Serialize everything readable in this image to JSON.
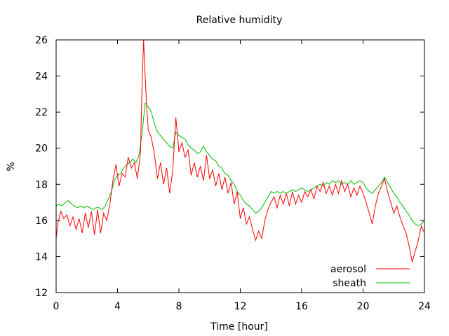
{
  "chart_data": {
    "type": "line",
    "title": "Relative humidity",
    "xlabel": "Time [hour]",
    "ylabel": "%",
    "xlim": [
      0,
      24
    ],
    "ylim": [
      12,
      26
    ],
    "xticks": [
      0,
      4,
      8,
      12,
      16,
      20,
      24
    ],
    "yticks": [
      12,
      14,
      16,
      18,
      20,
      22,
      24,
      26
    ],
    "grid": false,
    "legend_position": "bottom-right",
    "series": [
      {
        "name": "aerosol",
        "color": "#ff0000",
        "x": [
          0,
          0.1,
          0.3,
          0.5,
          0.7,
          0.9,
          1.1,
          1.3,
          1.5,
          1.7,
          1.9,
          2.1,
          2.3,
          2.5,
          2.7,
          2.9,
          3.1,
          3.3,
          3.5,
          3.7,
          3.9,
          4.1,
          4.3,
          4.5,
          4.7,
          4.9,
          5.1,
          5.3,
          5.5,
          5.6,
          5.7,
          5.8,
          5.9,
          6.0,
          6.2,
          6.4,
          6.6,
          6.8,
          7.0,
          7.2,
          7.4,
          7.6,
          7.8,
          7.9,
          8.0,
          8.2,
          8.4,
          8.6,
          8.8,
          9.0,
          9.2,
          9.4,
          9.6,
          9.8,
          10.0,
          10.2,
          10.4,
          10.6,
          10.8,
          11.0,
          11.2,
          11.4,
          11.6,
          11.8,
          12.0,
          12.2,
          12.4,
          12.6,
          12.8,
          13.0,
          13.2,
          13.4,
          13.6,
          13.8,
          14.0,
          14.2,
          14.4,
          14.6,
          14.8,
          15.0,
          15.2,
          15.4,
          15.6,
          15.8,
          16.0,
          16.2,
          16.4,
          16.6,
          16.8,
          17.0,
          17.2,
          17.4,
          17.6,
          17.8,
          18.0,
          18.2,
          18.4,
          18.6,
          18.8,
          19.0,
          19.2,
          19.4,
          19.6,
          19.8,
          20.0,
          20.2,
          20.4,
          20.6,
          20.8,
          21.0,
          21.2,
          21.4,
          21.6,
          21.8,
          22.0,
          22.2,
          22.4,
          22.6,
          22.8,
          23.0,
          23.2,
          23.4,
          23.6,
          23.8,
          24.0
        ],
        "y": [
          15.0,
          15.8,
          16.5,
          16.1,
          16.3,
          15.7,
          16.2,
          15.5,
          16.1,
          15.3,
          16.4,
          15.6,
          16.5,
          15.2,
          16.6,
          15.3,
          16.4,
          16.0,
          16.9,
          18.2,
          19.1,
          17.9,
          18.6,
          18.4,
          19.5,
          18.9,
          19.2,
          18.3,
          19.8,
          23.5,
          26.0,
          24.0,
          22.3,
          21.0,
          20.6,
          19.7,
          18.3,
          19.2,
          18.0,
          18.9,
          17.5,
          18.8,
          21.7,
          20.8,
          19.8,
          20.3,
          19.5,
          19.9,
          18.5,
          19.2,
          18.4,
          19.0,
          18.2,
          19.6,
          18.3,
          18.8,
          17.9,
          18.6,
          17.7,
          18.4,
          17.5,
          18.1,
          16.9,
          17.6,
          16.1,
          16.7,
          15.8,
          16.2,
          15.5,
          14.9,
          15.4,
          15.0,
          16.0,
          16.6,
          17.0,
          17.3,
          16.7,
          17.4,
          16.9,
          17.5,
          16.8,
          17.6,
          16.9,
          17.4,
          17.0,
          17.6,
          17.3,
          17.7,
          17.2,
          17.9,
          17.6,
          18.1,
          17.5,
          17.9,
          17.4,
          18.0,
          17.5,
          18.2,
          17.6,
          18.0,
          17.3,
          17.8,
          17.4,
          17.9,
          17.5,
          17.0,
          16.4,
          15.8,
          16.8,
          17.5,
          17.9,
          18.3,
          17.6,
          17.0,
          16.4,
          16.8,
          16.2,
          15.7,
          15.3,
          14.6,
          13.7,
          14.3,
          14.9,
          15.7,
          15.3
        ]
      },
      {
        "name": "sheath",
        "color": "#00bb00",
        "x": [
          0,
          0.2,
          0.4,
          0.6,
          0.8,
          1.0,
          1.2,
          1.4,
          1.6,
          1.8,
          2.0,
          2.2,
          2.4,
          2.6,
          2.8,
          3.0,
          3.2,
          3.4,
          3.6,
          3.8,
          4.0,
          4.2,
          4.4,
          4.6,
          4.8,
          5.0,
          5.2,
          5.4,
          5.6,
          5.8,
          6.0,
          6.2,
          6.4,
          6.6,
          6.8,
          7.0,
          7.2,
          7.4,
          7.6,
          7.8,
          8.0,
          8.2,
          8.4,
          8.6,
          8.8,
          9.0,
          9.2,
          9.4,
          9.6,
          9.8,
          10.0,
          10.2,
          10.4,
          10.6,
          10.8,
          11.0,
          11.2,
          11.4,
          11.6,
          11.8,
          12.0,
          12.2,
          12.4,
          12.6,
          12.8,
          13.0,
          13.2,
          13.4,
          13.6,
          13.8,
          14.0,
          14.2,
          14.4,
          14.6,
          14.8,
          15.0,
          15.2,
          15.4,
          15.6,
          15.8,
          16.0,
          16.2,
          16.4,
          16.6,
          16.8,
          17.0,
          17.2,
          17.4,
          17.6,
          17.8,
          18.0,
          18.2,
          18.4,
          18.6,
          18.8,
          19.0,
          19.2,
          19.4,
          19.6,
          19.8,
          20.0,
          20.2,
          20.4,
          20.6,
          20.8,
          21.0,
          21.2,
          21.4,
          21.6,
          21.8,
          22.0,
          22.2,
          22.4,
          22.6,
          22.8,
          23.0,
          23.2,
          23.4,
          23.6,
          23.8,
          24.0
        ],
        "y": [
          16.8,
          16.9,
          16.8,
          17.0,
          17.1,
          16.9,
          16.8,
          16.7,
          16.8,
          16.7,
          16.8,
          16.7,
          16.6,
          16.7,
          16.7,
          16.6,
          16.8,
          17.2,
          17.6,
          18.2,
          18.5,
          18.6,
          18.9,
          19.1,
          19.2,
          19.4,
          19.2,
          19.6,
          20.8,
          22.5,
          22.3,
          22.0,
          21.4,
          20.9,
          20.7,
          20.5,
          20.3,
          20.1,
          20.0,
          20.9,
          20.7,
          20.6,
          20.5,
          20.2,
          20.0,
          19.9,
          19.7,
          19.8,
          20.1,
          19.8,
          19.6,
          19.4,
          19.3,
          19.0,
          18.9,
          18.6,
          18.5,
          18.2,
          18.0,
          17.6,
          17.4,
          17.1,
          16.9,
          16.8,
          16.6,
          16.4,
          16.5,
          16.7,
          17.0,
          17.3,
          17.6,
          17.5,
          17.6,
          17.5,
          17.6,
          17.5,
          17.6,
          17.7,
          17.6,
          17.7,
          17.8,
          17.7,
          17.6,
          17.7,
          17.8,
          17.9,
          18.0,
          17.9,
          18.1,
          18.0,
          18.2,
          18.1,
          18.2,
          18.0,
          18.1,
          18.0,
          18.2,
          18.0,
          18.1,
          18.2,
          18.1,
          17.8,
          17.6,
          17.5,
          17.7,
          17.9,
          18.1,
          18.4,
          18.1,
          17.8,
          17.5,
          17.3,
          17.0,
          16.8,
          16.5,
          16.3,
          16.0,
          15.8,
          15.7,
          15.8,
          16.0
        ]
      }
    ]
  }
}
